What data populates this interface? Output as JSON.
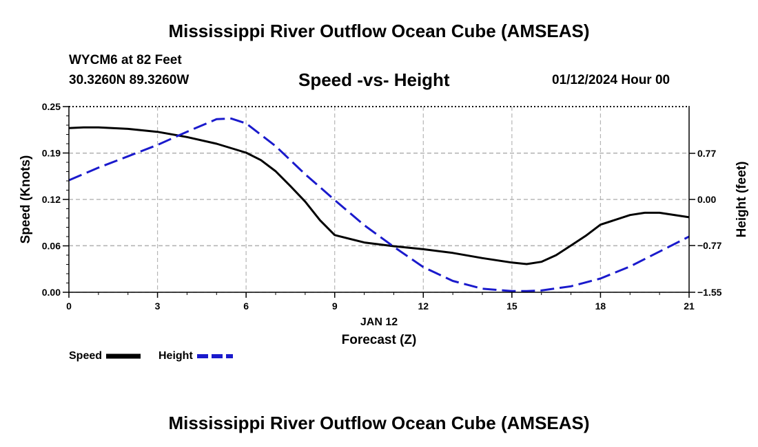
{
  "header": {
    "title": "Mississippi River Outflow Ocean Cube (AMSEAS)",
    "station": "WYCM6 at 82 Feet",
    "coords": "30.3260N  89.3260W",
    "subtitle": "Speed -vs- Height",
    "datetime": "01/12/2024 Hour 00"
  },
  "footer": {
    "title": "Mississippi River Outflow Ocean Cube (AMSEAS)"
  },
  "chart_data": {
    "type": "line",
    "title": "Speed -vs- Height",
    "xlabel": "Forecast (Z)",
    "xdate_label": "JAN 12",
    "ylabel_left": "Speed (Knots)",
    "ylabel_right": "Height (feet)",
    "xlim": [
      0,
      21
    ],
    "ylim_left": [
      0,
      0.25
    ],
    "ylim_right": [
      -1.55,
      1.55
    ],
    "x_ticks": [
      0,
      3,
      6,
      9,
      12,
      15,
      18,
      21
    ],
    "x_tick_labels": [
      "0",
      "3",
      "6",
      "9",
      "12",
      "15",
      "18",
      "21"
    ],
    "y_left_ticks": [
      0.0,
      0.0625,
      0.125,
      0.1875,
      0.25
    ],
    "y_left_tick_labels": [
      "0.00",
      "0.06",
      "0.12",
      "0.19",
      "0.25"
    ],
    "y_right_ticks": [
      -1.55,
      -0.77,
      0.0,
      0.77
    ],
    "y_right_tick_labels": [
      "-1.55",
      "-0.77",
      "0.00",
      "0.77"
    ],
    "grid": true,
    "series": [
      {
        "name": "Speed",
        "axis": "left",
        "color": "#000000",
        "style": "solid",
        "x": [
          0,
          0.5,
          1,
          2,
          3,
          4,
          5,
          6,
          6.5,
          7,
          7.5,
          8,
          8.5,
          9,
          10,
          11,
          12,
          13,
          14,
          15,
          15.5,
          16,
          16.5,
          17,
          17.5,
          18,
          19,
          19.5,
          20,
          21
        ],
        "y": [
          0.221,
          0.222,
          0.222,
          0.22,
          0.216,
          0.209,
          0.2,
          0.188,
          0.178,
          0.163,
          0.143,
          0.122,
          0.097,
          0.077,
          0.067,
          0.062,
          0.058,
          0.053,
          0.046,
          0.04,
          0.038,
          0.041,
          0.05,
          0.063,
          0.076,
          0.091,
          0.104,
          0.107,
          0.107,
          0.101
        ]
      },
      {
        "name": "Height",
        "axis": "right",
        "color": "#1a1acc",
        "style": "dashed",
        "x": [
          0,
          1,
          2,
          3,
          4,
          5,
          5.5,
          6,
          7,
          8,
          9,
          10,
          11,
          12,
          13,
          14,
          15,
          15.5,
          16,
          17,
          18,
          19,
          20,
          21
        ],
        "y": [
          0.32,
          0.53,
          0.72,
          0.91,
          1.13,
          1.34,
          1.35,
          1.27,
          0.89,
          0.42,
          -0.01,
          -0.43,
          -0.79,
          -1.13,
          -1.36,
          -1.49,
          -1.53,
          -1.53,
          -1.52,
          -1.45,
          -1.32,
          -1.12,
          -0.87,
          -0.62
        ]
      }
    ],
    "legend": [
      {
        "label": "Speed",
        "color": "#000000",
        "style": "solid"
      },
      {
        "label": "Height",
        "color": "#1a1acc",
        "style": "dashed"
      }
    ]
  }
}
